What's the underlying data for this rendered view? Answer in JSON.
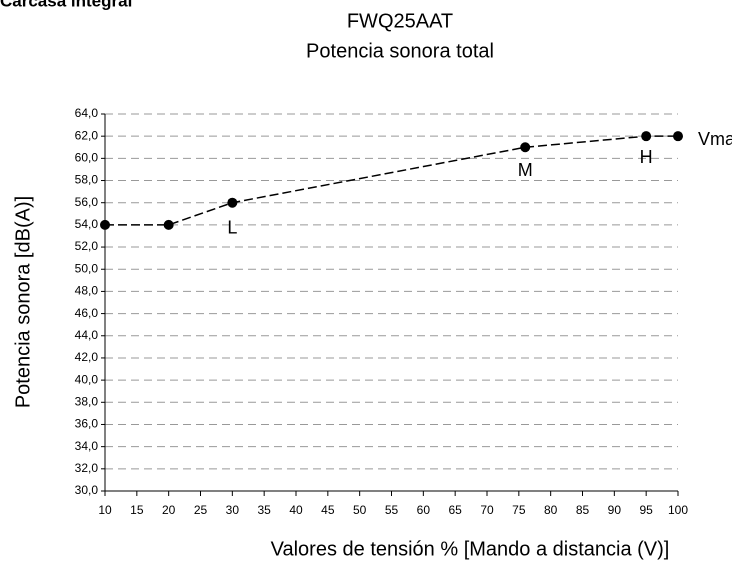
{
  "header": "Carcasa integral",
  "chart_data": {
    "type": "line",
    "title": "FWQ25AAT",
    "subtitle": "Potencia sonora total",
    "x_label": "Valores de tensión % [Mando a distancia (V)]",
    "y_label": "Potencia sonora [dB(A)]",
    "x": [
      10,
      20,
      30,
      76,
      95,
      100
    ],
    "series": [
      {
        "color": "#000000",
        "values": [
          54,
          54,
          56,
          61,
          62,
          62
        ]
      }
    ],
    "point_labels": [
      null,
      null,
      "L",
      "M",
      "H",
      "Vmax"
    ],
    "xlim": [
      10,
      100
    ],
    "xticks": [
      10,
      15,
      20,
      25,
      30,
      35,
      40,
      45,
      50,
      55,
      60,
      65,
      70,
      75,
      80,
      85,
      90,
      95,
      100
    ],
    "ylim": [
      30,
      64
    ],
    "yticks": [
      {
        "value": 30,
        "label": "30,0"
      },
      {
        "value": 32,
        "label": "32,0"
      },
      {
        "value": 34,
        "label": "34,0"
      },
      {
        "value": 36,
        "label": "36,0"
      },
      {
        "value": 38,
        "label": "38,0"
      },
      {
        "value": 40,
        "label": "40,0"
      },
      {
        "value": 42,
        "label": "42,0"
      },
      {
        "value": 44,
        "label": "44,0"
      },
      {
        "value": 46,
        "label": "46,0"
      },
      {
        "value": 48,
        "label": "48,0"
      },
      {
        "value": 50,
        "label": "50,0"
      },
      {
        "value": 52,
        "label": "52,0"
      },
      {
        "value": 54,
        "label": "54,0"
      },
      {
        "value": 56,
        "label": "56,0"
      },
      {
        "value": 58,
        "label": "58,0"
      },
      {
        "value": 60,
        "label": "60,0"
      },
      {
        "value": 62,
        "label": "62,0"
      },
      {
        "value": 64,
        "label": "64,0"
      }
    ],
    "grid": true
  }
}
